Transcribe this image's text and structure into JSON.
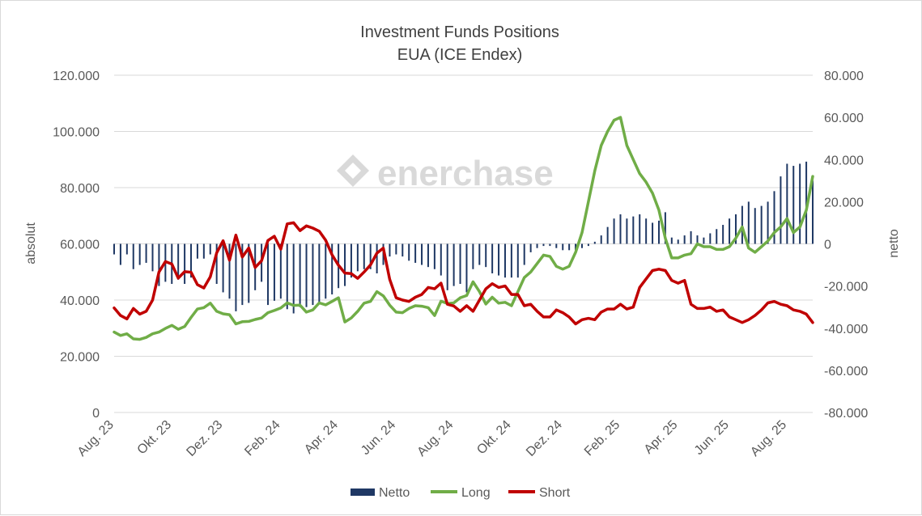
{
  "chart_data": {
    "type": "bar+line",
    "title": "Investment Funds Positions",
    "subtitle": "EUA (ICE Endex)",
    "watermark": "enerchase",
    "ylabel_left": "absolut",
    "ylabel_right": "netto",
    "ylim_left": [
      0,
      120000
    ],
    "ylim_right": [
      -80000,
      80000
    ],
    "yticks_left": [
      "0",
      "20.000",
      "40.000",
      "60.000",
      "80.000",
      "100.000",
      "120.000"
    ],
    "yticks_right": [
      "-80.000",
      "-60.000",
      "-40.000",
      "-20.000",
      "0",
      "20.000",
      "40.000",
      "60.000",
      "80.000"
    ],
    "xticks": [
      {
        "label": "Aug. 23",
        "index": 0
      },
      {
        "label": "Okt. 23",
        "index": 9
      },
      {
        "label": "Dez. 23",
        "index": 17
      },
      {
        "label": "Feb. 24",
        "index": 26
      },
      {
        "label": "Apr. 24",
        "index": 35
      },
      {
        "label": "Jun. 24",
        "index": 44
      },
      {
        "label": "Aug. 24",
        "index": 53
      },
      {
        "label": "Okt. 24",
        "index": 62
      },
      {
        "label": "Dez. 24",
        "index": 70
      },
      {
        "label": "Feb. 25",
        "index": 79
      },
      {
        "label": "Apr. 25",
        "index": 88
      },
      {
        "label": "Jun. 25",
        "index": 96
      },
      {
        "label": "Aug. 25",
        "index": 105
      }
    ],
    "legend": [
      "Netto",
      "Long",
      "Short"
    ],
    "colors": {
      "Netto": "#1f3864",
      "Long": "#70ad47",
      "Short": "#c00000"
    },
    "series": [
      {
        "name": "Long",
        "axis": "left",
        "values": [
          28600,
          27400,
          28000,
          26200,
          26000,
          26700,
          28000,
          28600,
          29900,
          31000,
          29600,
          30600,
          33800,
          36800,
          37300,
          38900,
          36000,
          35100,
          34800,
          31500,
          32300,
          32400,
          33100,
          33600,
          35500,
          36300,
          37200,
          39000,
          38100,
          38200,
          35700,
          36500,
          39000,
          38300,
          39500,
          40800,
          32200,
          33600,
          36000,
          38900,
          39500,
          43000,
          41500,
          38200,
          35700,
          35500,
          37000,
          38000,
          37800,
          37300,
          34500,
          39600,
          38800,
          39000,
          40800,
          41600,
          46500,
          43000,
          38600,
          41000,
          38900,
          39200,
          38000,
          43000,
          48000,
          50000,
          53000,
          56000,
          55500,
          52000,
          51000,
          52000,
          57000,
          64000,
          75000,
          86000,
          95000,
          100000,
          104000,
          105000,
          95000,
          90000,
          85000,
          82000,
          78000,
          72000,
          62000,
          55000,
          55000,
          56000,
          56500,
          60000,
          59000,
          59000,
          58000,
          58000,
          59000,
          62000,
          66000,
          58500,
          57000,
          59000,
          61000,
          64000,
          66000,
          69000,
          64000,
          66000,
          72000,
          84000
        ]
      },
      {
        "name": "Short",
        "axis": "left",
        "values": [
          37200,
          34500,
          33300,
          37000,
          35000,
          36000,
          40000,
          50000,
          53700,
          52800,
          47800,
          50100,
          49900,
          45500,
          44300,
          48300,
          56800,
          61100,
          54200,
          63100,
          55300,
          58500,
          51600,
          54000,
          61200,
          62700,
          58100,
          67100,
          67500,
          64700,
          66400,
          65600,
          64500,
          61300,
          56100,
          52400,
          49600,
          49400,
          47700,
          50000,
          52500,
          56700,
          58500,
          47400,
          40800,
          40000,
          39500,
          41000,
          42000,
          44500,
          44000,
          46000,
          38500,
          37900,
          36000,
          38000,
          36000,
          40000,
          44000,
          45800,
          44500,
          45000,
          42000,
          42000,
          38000,
          38500,
          36000,
          34000,
          34000,
          36500,
          35500,
          34000,
          31500,
          33000,
          33500,
          33000,
          35700,
          36800,
          36800,
          38500,
          36800,
          37500,
          44500,
          47500,
          50500,
          51000,
          50500,
          47000,
          46000,
          47000,
          38500,
          37000,
          37000,
          37500,
          36000,
          36500,
          34000,
          33000,
          32000,
          33000,
          34500,
          36500,
          39000,
          39500,
          38500,
          38000,
          36500,
          36000,
          35000,
          32000
        ]
      },
      {
        "name": "Netto",
        "axis": "right",
        "values": [
          -5000,
          -10000,
          -5000,
          -12000,
          -10000,
          -9000,
          -13000,
          -20000,
          -18000,
          -19000,
          -17000,
          -19000,
          -16000,
          -7000,
          -7000,
          -5000,
          -19000,
          -23000,
          -26000,
          -32000,
          -29000,
          -28000,
          -22000,
          -18000,
          -29000,
          -27000,
          -26000,
          -31000,
          -33000,
          -30000,
          -30000,
          -29000,
          -28000,
          -26000,
          -24000,
          -21000,
          -20000,
          -16000,
          -13000,
          -12000,
          -12000,
          -14000,
          -10000,
          -6000,
          -5000,
          -6000,
          -8000,
          -9000,
          -10000,
          -11000,
          -12000,
          -15000,
          -22000,
          -20000,
          -19000,
          -23000,
          -12000,
          -10000,
          -11000,
          -14000,
          -15000,
          -16000,
          -16000,
          -16000,
          -10000,
          -4000,
          -2000,
          -1000,
          -1000,
          -2000,
          -3000,
          -3000,
          -3000,
          -2000,
          -1000,
          1000,
          4000,
          8000,
          12000,
          14000,
          12000,
          13000,
          14000,
          12000,
          10000,
          11000,
          15000,
          3000,
          2000,
          4000,
          6000,
          4000,
          3000,
          5000,
          7000,
          9000,
          12000,
          14000,
          18000,
          20000,
          17000,
          18000,
          20000,
          25000,
          32000,
          38000,
          37000,
          38000,
          39000,
          30000
        ]
      }
    ]
  }
}
